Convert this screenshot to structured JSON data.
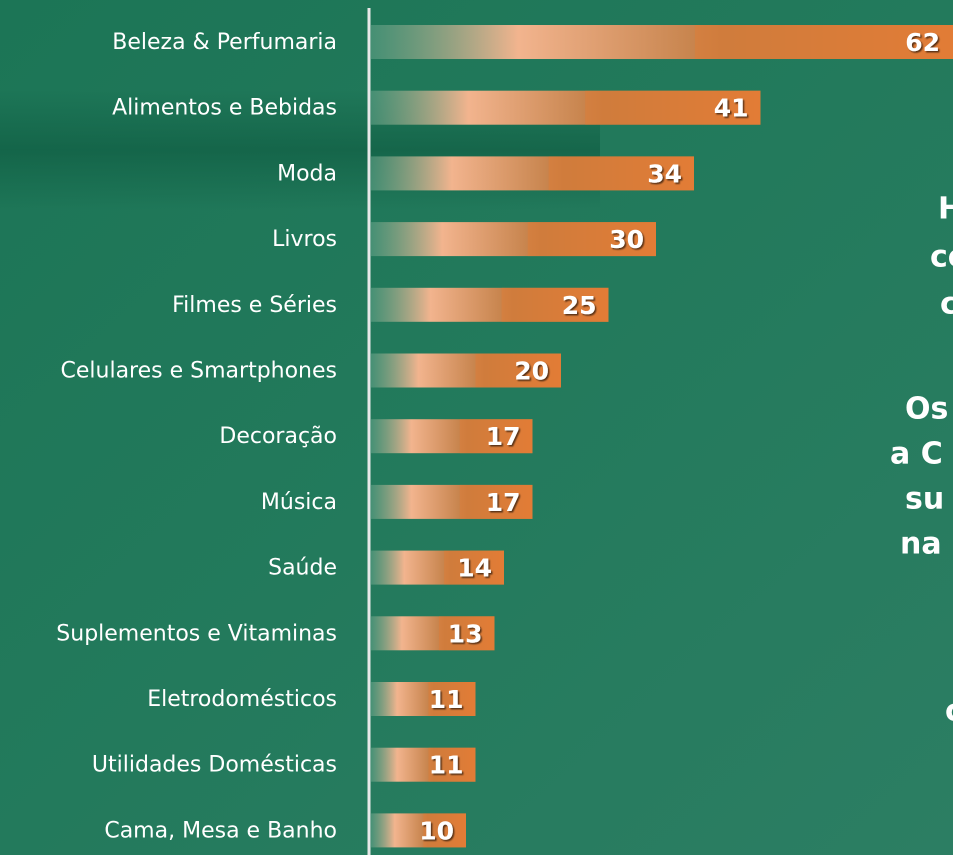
{
  "chart_data": {
    "type": "bar",
    "orientation": "horizontal",
    "categories": [
      "Beleza & Perfumaria",
      "Alimentos e Bebidas",
      "Moda",
      "Livros",
      "Filmes e Séries",
      "Celulares e Smartphones",
      "Decoração",
      "Música",
      "Saúde",
      "Suplementos e Vitaminas",
      "Eletrodomésticos",
      "Utilidades Domésticas",
      "Cama, Mesa e Banho"
    ],
    "values": [
      62,
      41,
      34,
      30,
      25,
      20,
      17,
      17,
      14,
      13,
      11,
      11,
      10
    ],
    "color": "#e07b35",
    "annotations": [
      "H",
      "co",
      "c",
      "Os",
      "a C",
      "su",
      "na",
      "c"
    ]
  }
}
